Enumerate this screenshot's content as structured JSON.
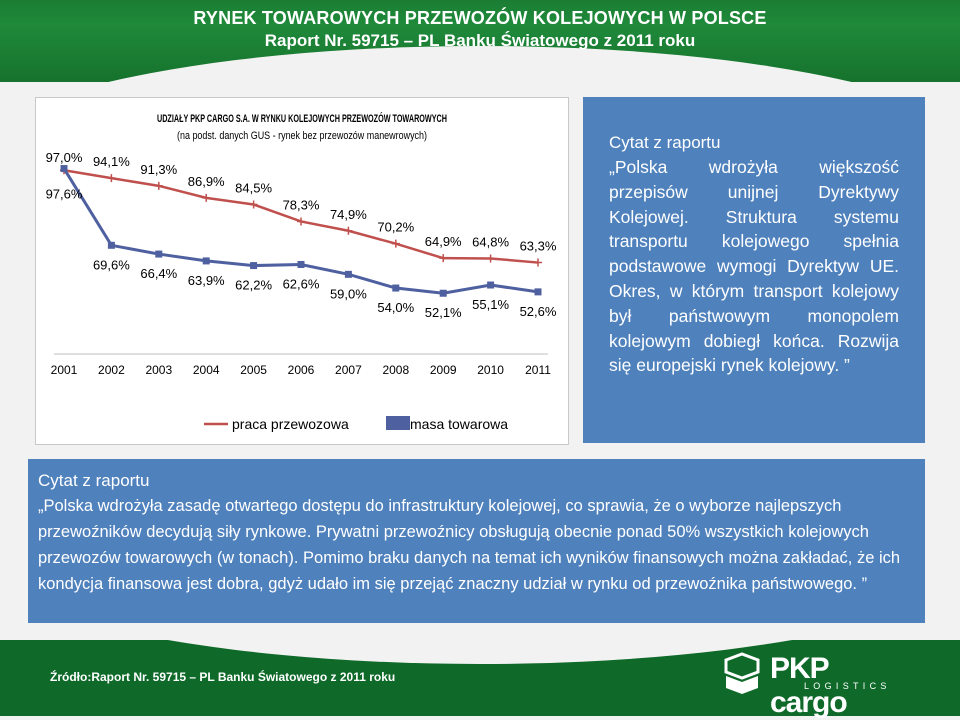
{
  "header": {
    "title_line1": "RYNEK TOWAROWYCH PRZEWOZÓW KOLEJOWYCH W POLSCE",
    "title_line2": "Raport Nr. 59715 – PL Banku Światowego z 2011 roku",
    "color": "#1d8137"
  },
  "chart_data": {
    "type": "line",
    "title": "UDZIAŁY PKP CARGO S.A. W RYNKU KOLEJOWYCH PRZEWOZÓW TOWAROWYCH",
    "subtitle": "(na podst. danych GUS - rynek bez przewozów manewrowych)",
    "categories": [
      "2001",
      "2002",
      "2003",
      "2004",
      "2005",
      "2006",
      "2007",
      "2008",
      "2009",
      "2010",
      "2011"
    ],
    "series": [
      {
        "name": "praca przewozowa",
        "color": "#c0504d",
        "marker": "cross",
        "values": [
          97.0,
          94.1,
          91.3,
          86.9,
          84.5,
          78.3,
          74.9,
          70.2,
          64.9,
          64.8,
          63.3
        ],
        "labels": [
          "97,0%",
          "94,1%",
          "91,3%",
          "86,9%",
          "84,5%",
          "78,3%",
          "74,9%",
          "70,2%",
          "64,9%",
          "64,8%",
          "63,3%"
        ]
      },
      {
        "name": "masa towarowa",
        "color": "#4f60a0",
        "marker": "square",
        "values": [
          97.6,
          69.6,
          66.4,
          63.9,
          62.2,
          62.6,
          59.0,
          54.0,
          52.1,
          55.1,
          52.6
        ],
        "labels": [
          "97,6%",
          "69,6%",
          "66,4%",
          "63,9%",
          "62,2%",
          "62,6%",
          "59,0%",
          "54,0%",
          "52,1%",
          "55,1%",
          "52,6%"
        ]
      }
    ],
    "ylabel": "",
    "xlabel": "",
    "legend_position": "bottom",
    "grid": false
  },
  "quote1": {
    "heading": "Cytat z raportu",
    "text": "„Polska wdrożyła większość przepisów unijnej Dyrektywy Kolejowej. Struktura systemu transportu kolejowego spełnia podstawowe wymogi Dyrektyw UE. Okres, w którym transport kolejowy był państwowym monopolem kolejowym dobiegł końca. Rozwija się europejski rynek kolejowy. ”"
  },
  "quote2": {
    "heading": "Cytat z raportu",
    "text": "„Polska wdrożyła zasadę otwartego dostępu do infrastruktury kolejowej, co sprawia, że o wyborze najlepszych przewoźników decydują siły rynkowe. Prywatni przewoźnicy obsługują obecnie ponad 50% wszystkich kolejowych przewozów towarowych (w tonach). Pomimo braku danych  na temat ich wyników finansowych można zakładać, że ich kondycja finansowa jest dobra, gdyż udało im się przejąć znaczny udział w rynku od przewoźnika państwowego. ”"
  },
  "footer": {
    "source_label": "Źródło:",
    "source_text": "Raport Nr. 59715 – PL Banku Światowego z 2011 roku",
    "logo_text": "PKP cargo",
    "logo_sub": "LOGISTICS",
    "logo_color": "#ffffff"
  },
  "colors": {
    "quote_bg": "#4f81bd",
    "header_green": "#1d8137",
    "footer_green": "#0f6a2a"
  }
}
